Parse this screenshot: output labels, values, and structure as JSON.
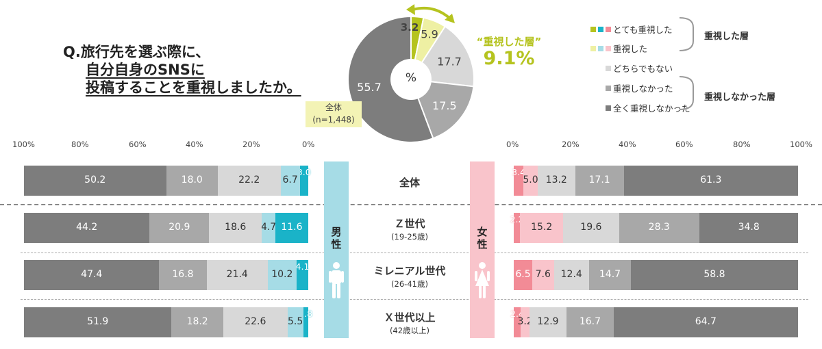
{
  "question": {
    "lines": [
      "Q.旅行先を選ぶ際に、",
      "自分自身のSNSに",
      "投稿することを重視しましたか。"
    ]
  },
  "pie": {
    "caption_line1": "全体",
    "caption_line2": "(n=1,448)",
    "center_label": "%",
    "highlight_label": "“重視した層”",
    "highlight_value": "9.1%"
  },
  "legend": {
    "items": [
      {
        "label": "とても重視した",
        "swatches": [
          "#b5c31f",
          "#1ab3c8",
          "#f28b96"
        ]
      },
      {
        "label": "重視した",
        "swatches": [
          "#eef0a3",
          "#a6dce6",
          "#f9c4cb"
        ]
      },
      {
        "label": "どちらでもない",
        "swatches": [
          "#d8d8d8"
        ]
      },
      {
        "label": "重視しなかった",
        "swatches": [
          "#a8a8a8"
        ]
      },
      {
        "label": "全く重視しなかった",
        "swatches": [
          "#7d7d7d"
        ]
      }
    ],
    "groups": [
      {
        "label": "重視した層"
      },
      {
        "label": "重視しなかった層"
      }
    ]
  },
  "axis": {
    "left_ticks": [
      "100%",
      "80%",
      "60%",
      "40%",
      "20%",
      "0%"
    ],
    "right_ticks": [
      "0%",
      "20%",
      "40%",
      "60%",
      "80%",
      "100%"
    ]
  },
  "genders": {
    "male": {
      "label_1": "男",
      "label_2": "性",
      "color": "#a6dce6"
    },
    "female": {
      "label_1": "女",
      "label_2": "性",
      "color": "#f9c4cb"
    }
  },
  "rows": [
    {
      "label": "全体",
      "sub": ""
    },
    {
      "label": "Ｚ世代",
      "sub": "(19-25歳)"
    },
    {
      "label": "ミレニアル世代",
      "sub": "(26-41歳)"
    },
    {
      "label": "Ｘ世代以上",
      "sub": "(42歳以上)"
    }
  ],
  "colors": {
    "neutral": "#d8d8d8",
    "not_important": "#a8a8a8",
    "not_at_all": "#7d7d7d",
    "male_very": "#1ab3c8",
    "male_some": "#a6dce6",
    "female_very": "#f28b96",
    "female_some": "#f9c4cb",
    "all_very": "#b5c31f",
    "all_some": "#eef0a3"
  },
  "chart_data": [
    {
      "type": "pie",
      "title": "全体",
      "categories": [
        "とても重視した",
        "重視した",
        "どちらでもない",
        "重視しなかった",
        "全く重視しなかった"
      ],
      "values": [
        3.2,
        5.9,
        17.7,
        17.5,
        55.7
      ],
      "unit": "%"
    },
    {
      "type": "bar",
      "orientation": "horizontal-stacked",
      "name": "男性",
      "categories": [
        "全体",
        "Ｚ世代",
        "ミレニアル世代",
        "Ｘ世代以上"
      ],
      "series": [
        {
          "name": "とても重視した",
          "values": [
            3.0,
            11.6,
            4.1,
            1.8
          ]
        },
        {
          "name": "重視した",
          "values": [
            6.7,
            4.7,
            10.2,
            5.5
          ]
        },
        {
          "name": "どちらでもない",
          "values": [
            22.2,
            18.6,
            21.4,
            22.6
          ]
        },
        {
          "name": "重視しなかった",
          "values": [
            18.0,
            20.9,
            16.8,
            18.2
          ]
        },
        {
          "name": "全く重視しなかった",
          "values": [
            50.2,
            44.2,
            47.4,
            51.9
          ]
        }
      ],
      "xlim": [
        0,
        100
      ]
    },
    {
      "type": "bar",
      "orientation": "horizontal-stacked",
      "name": "女性",
      "categories": [
        "全体",
        "Ｚ世代",
        "ミレニアル世代",
        "Ｘ世代以上"
      ],
      "series": [
        {
          "name": "とても重視した",
          "values": [
            3.4,
            2.2,
            6.5,
            2.4
          ]
        },
        {
          "name": "重視した",
          "values": [
            5.0,
            15.2,
            7.6,
            3.2
          ]
        },
        {
          "name": "どちらでもない",
          "values": [
            13.2,
            19.6,
            12.4,
            12.9
          ]
        },
        {
          "name": "重視しなかった",
          "values": [
            17.1,
            28.3,
            14.7,
            16.7
          ]
        },
        {
          "name": "全く重視しなかった",
          "values": [
            61.3,
            34.8,
            58.8,
            64.7
          ]
        }
      ],
      "xlim": [
        0,
        100
      ]
    }
  ]
}
